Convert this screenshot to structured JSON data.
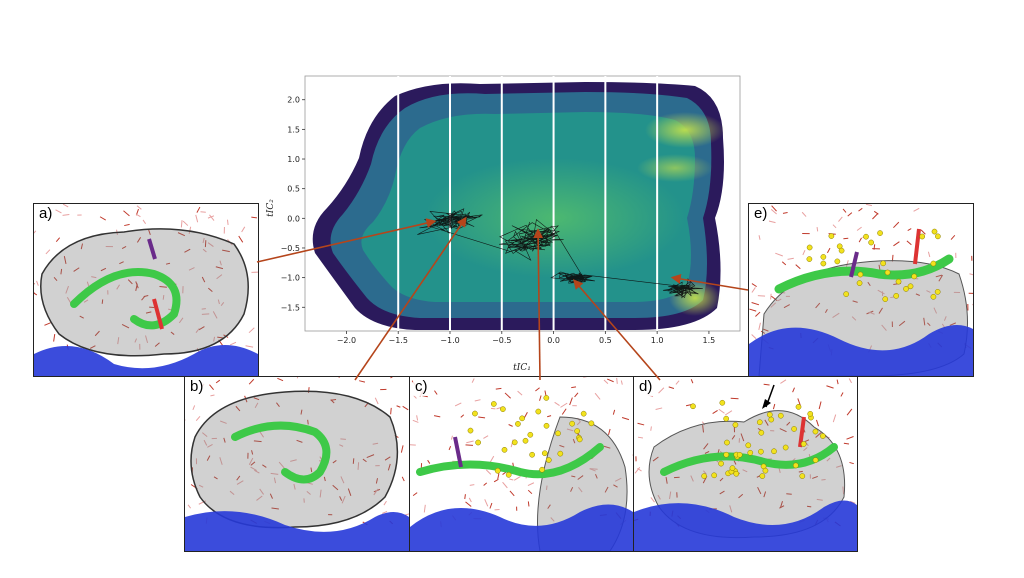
{
  "figure": {
    "panels": [
      {
        "label": "a)"
      },
      {
        "label": "b)"
      },
      {
        "label": "c)"
      },
      {
        "label": "d)"
      },
      {
        "label": "e)"
      }
    ]
  },
  "chart_data": {
    "type": "heatmap",
    "xlabel": "tIC₁",
    "ylabel": "tIC₂",
    "xlim": [
      -2.4,
      1.8
    ],
    "ylim": [
      -1.9,
      2.4
    ],
    "xticks": [
      -2.0,
      -1.5,
      -1.0,
      -0.5,
      0.0,
      0.5,
      1.0,
      1.5
    ],
    "xtick_labels": [
      "−2.0",
      "−1.5",
      "−1.0",
      "−0.5",
      "0.0",
      "0.5",
      "1.0",
      "1.5"
    ],
    "yticks": [
      -1.5,
      -1.0,
      -0.5,
      0.0,
      0.5,
      1.0,
      1.5,
      2.0
    ],
    "ytick_labels": [
      "−1.5",
      "−1.0",
      "−0.5",
      "0.0",
      "0.5",
      "1.0",
      "1.5",
      "2.0"
    ],
    "bin_dividers_x": [
      -1.5,
      -1.0,
      -0.5,
      0.0,
      0.5,
      1.0
    ],
    "trajectory_clusters": [
      {
        "x": -1.0,
        "y": -0.05,
        "sx": 0.22,
        "sy": 0.15
      },
      {
        "x": -0.2,
        "y": -0.35,
        "sx": 0.25,
        "sy": 0.25
      },
      {
        "x": 0.2,
        "y": -1.0,
        "sx": 0.15,
        "sy": 0.07
      },
      {
        "x": 1.25,
        "y": -1.2,
        "sx": 0.14,
        "sy": 0.12
      }
    ],
    "state_points": [
      {
        "panel": "a)",
        "x": -1.15,
        "y": -0.05
      },
      {
        "panel": "b)",
        "x": -0.85,
        "y": 0.0
      },
      {
        "panel": "c)",
        "x": -0.15,
        "y": -0.2
      },
      {
        "panel": "d)",
        "x": 0.2,
        "y": -1.05
      },
      {
        "panel": "e)",
        "x": 1.15,
        "y": -1.0
      }
    ],
    "density_hotspots": [
      {
        "x": 1.4,
        "y": 1.5
      },
      {
        "x": 1.3,
        "y": 1.0
      },
      {
        "x": 1.45,
        "y": -1.3
      }
    ]
  }
}
